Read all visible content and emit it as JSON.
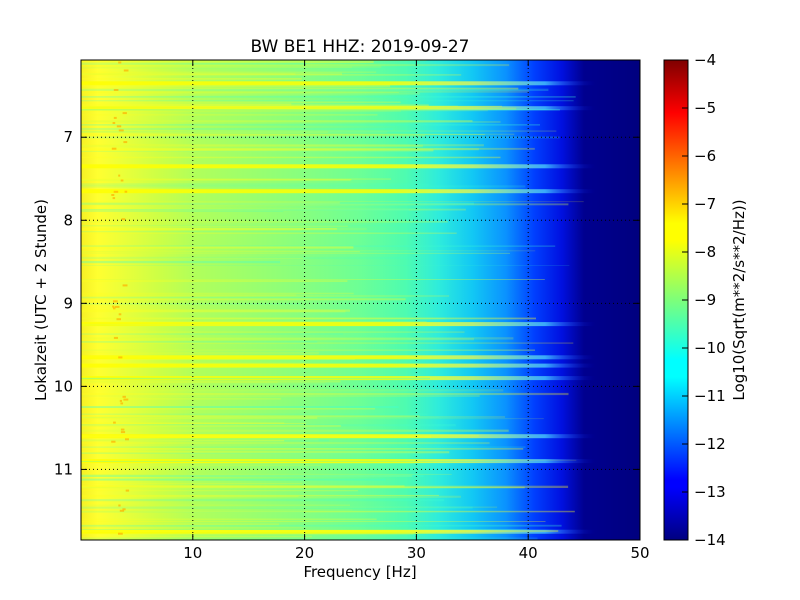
{
  "chart_data": {
    "type": "heatmap",
    "title": "BW BE1 HHZ: 2019-09-27",
    "xlabel": "Frequency [Hz]",
    "ylabel": "Lokalzeit (UTC + 2 Stunde)",
    "xlim": [
      0,
      50
    ],
    "ylim": [
      11.85,
      6.07
    ],
    "x_ticks": [
      10,
      20,
      30,
      40,
      50
    ],
    "y_ticks": [
      7,
      8,
      9,
      10,
      11
    ],
    "grid": true,
    "colormap": "jet",
    "colorbar": {
      "label": "Log10(Sqrt(m**2/s**2/Hz))",
      "range": [
        -14,
        -4
      ],
      "ticks": [
        -4,
        -5,
        -6,
        -7,
        -8,
        -9,
        -10,
        -11,
        -12,
        -13,
        -14
      ]
    },
    "description_of_field": {
      "low_freq_level": -8,
      "mid_freq_level": -9.5,
      "freq_30hz_level": -10.5,
      "freq_40hz_level": -12.5,
      "above_45hz_level": -14
    },
    "bright_horizontal_bands_hours": [
      6.35,
      6.65,
      7.35,
      7.65,
      9.25,
      9.65,
      9.75,
      9.9,
      10.6,
      10.9,
      11.75
    ]
  },
  "colors": {
    "jet_dark_blue": "#00007f",
    "jet_yellow": "#ffff00",
    "jet_dark_red": "#7f0000"
  }
}
